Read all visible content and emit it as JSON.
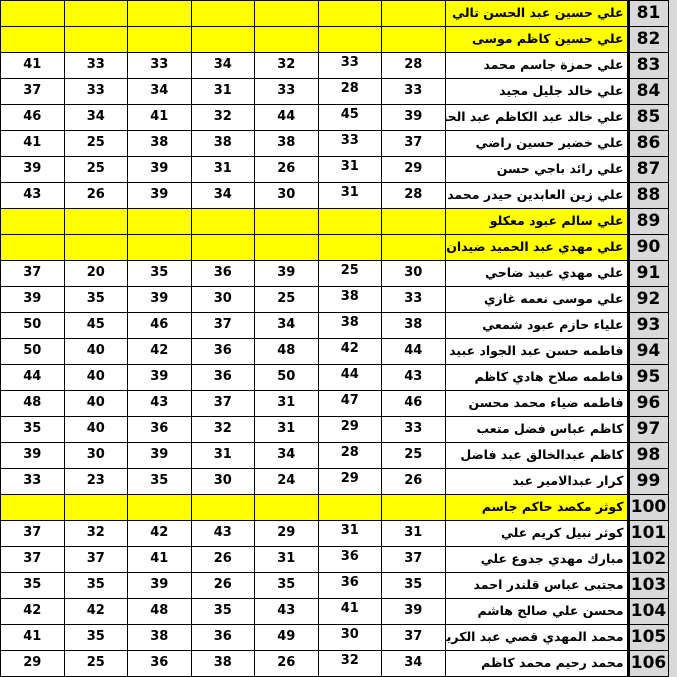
{
  "table": {
    "colors": {
      "highlight": "#ffff00",
      "row_number_bg": "#d9d9d9",
      "cell_bg": "#ffffff",
      "border": "#000000"
    },
    "rows": [
      {
        "num": "81",
        "name": "علي حسين عبد الحسن تالي",
        "highlighted": true,
        "values": [
          "",
          "",
          "",
          "",
          "",
          "",
          ""
        ]
      },
      {
        "num": "82",
        "name": "علي حسين كاظم موسى",
        "highlighted": true,
        "values": [
          "",
          "",
          "",
          "",
          "",
          "",
          ""
        ]
      },
      {
        "num": "83",
        "name": "علي حمزة جاسم محمد",
        "highlighted": false,
        "values": [
          "41",
          "33",
          "33",
          "34",
          "32",
          "33",
          "28"
        ]
      },
      {
        "num": "84",
        "name": "علي خالد جليل مجيد",
        "highlighted": false,
        "values": [
          "37",
          "33",
          "34",
          "31",
          "33",
          "28",
          "33"
        ]
      },
      {
        "num": "85",
        "name": "علي خالد عبد الكاظم عبد الحسن",
        "highlighted": false,
        "values": [
          "46",
          "34",
          "41",
          "32",
          "44",
          "45",
          "39"
        ]
      },
      {
        "num": "86",
        "name": "علي خضير حسين راضي",
        "highlighted": false,
        "values": [
          "41",
          "25",
          "38",
          "38",
          "38",
          "33",
          "37"
        ]
      },
      {
        "num": "87",
        "name": "علي رائد باجي حسن",
        "highlighted": false,
        "values": [
          "39",
          "25",
          "39",
          "31",
          "26",
          "31",
          "29"
        ]
      },
      {
        "num": "88",
        "name": "علي زين العابدين حيدر محمد رضا",
        "highlighted": false,
        "values": [
          "43",
          "26",
          "39",
          "34",
          "30",
          "31",
          "28"
        ]
      },
      {
        "num": "89",
        "name": "علي سالم عبود معكلو",
        "highlighted": true,
        "values": [
          "",
          "",
          "",
          "",
          "",
          "",
          ""
        ]
      },
      {
        "num": "90",
        "name": "علي مهدي عبد الحميد ضيدان",
        "highlighted": true,
        "values": [
          "",
          "",
          "",
          "",
          "",
          "",
          ""
        ]
      },
      {
        "num": "91",
        "name": "علي مهدي عبيد ضاحي",
        "highlighted": false,
        "values": [
          "37",
          "20",
          "35",
          "36",
          "39",
          "25",
          "30"
        ]
      },
      {
        "num": "92",
        "name": "علي موسى نعمه غازي",
        "highlighted": false,
        "values": [
          "39",
          "35",
          "39",
          "30",
          "25",
          "38",
          "33"
        ]
      },
      {
        "num": "93",
        "name": "علياء حازم عبود شمعي",
        "highlighted": false,
        "values": [
          "50",
          "45",
          "46",
          "37",
          "34",
          "38",
          "38"
        ]
      },
      {
        "num": "94",
        "name": "فاطمه حسن عبد الجواد عبيد",
        "highlighted": false,
        "values": [
          "50",
          "40",
          "42",
          "36",
          "48",
          "42",
          "44"
        ]
      },
      {
        "num": "95",
        "name": "فاطمه صلاح هادي كاظم",
        "highlighted": false,
        "values": [
          "44",
          "40",
          "39",
          "36",
          "50",
          "44",
          "43"
        ]
      },
      {
        "num": "96",
        "name": "فاطمه ضياء محمد محسن",
        "highlighted": false,
        "values": [
          "48",
          "40",
          "43",
          "37",
          "31",
          "47",
          "46"
        ]
      },
      {
        "num": "97",
        "name": "كاظم عباس فضل متعب",
        "highlighted": false,
        "values": [
          "35",
          "40",
          "36",
          "32",
          "31",
          "29",
          "33"
        ]
      },
      {
        "num": "98",
        "name": "كاظم عبدالخالق عبد فاضل",
        "highlighted": false,
        "values": [
          "39",
          "30",
          "39",
          "31",
          "34",
          "28",
          "25"
        ]
      },
      {
        "num": "99",
        "name": "كرار عبدالامير عبد",
        "highlighted": false,
        "values": [
          "33",
          "23",
          "35",
          "30",
          "24",
          "29",
          "26"
        ]
      },
      {
        "num": "100",
        "name": "كوثر مكصد حاكم جاسم",
        "highlighted": true,
        "values": [
          "",
          "",
          "",
          "",
          "",
          "",
          ""
        ]
      },
      {
        "num": "101",
        "name": "كوثر نبيل كريم علي",
        "highlighted": false,
        "values": [
          "37",
          "32",
          "42",
          "43",
          "29",
          "31",
          "31"
        ]
      },
      {
        "num": "102",
        "name": "مبارك مهدي جدوع علي",
        "highlighted": false,
        "values": [
          "37",
          "37",
          "41",
          "26",
          "31",
          "36",
          "37"
        ]
      },
      {
        "num": "103",
        "name": "مجتبى عباس قلندر احمد",
        "highlighted": false,
        "values": [
          "35",
          "35",
          "39",
          "26",
          "35",
          "36",
          "35"
        ]
      },
      {
        "num": "104",
        "name": "محسن علي صالح هاشم",
        "highlighted": false,
        "values": [
          "42",
          "42",
          "48",
          "35",
          "43",
          "41",
          "39"
        ]
      },
      {
        "num": "105",
        "name": "محمد المهدي قصي عبد الكريم محمد حسن",
        "highlighted": false,
        "values": [
          "41",
          "35",
          "38",
          "36",
          "49",
          "30",
          "37"
        ]
      },
      {
        "num": "106",
        "name": "محمد رحيم محمد كاظم",
        "highlighted": false,
        "values": [
          "29",
          "25",
          "36",
          "38",
          "26",
          "32",
          "34"
        ]
      }
    ]
  }
}
